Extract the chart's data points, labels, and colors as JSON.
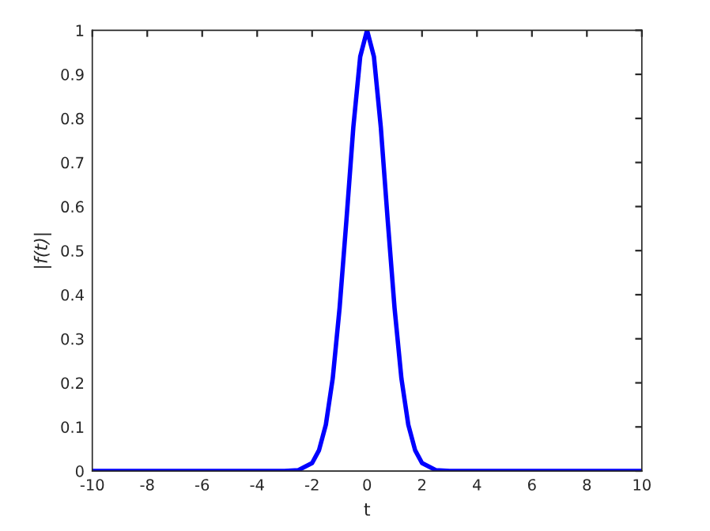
{
  "chart_data": {
    "type": "line",
    "xlabel": "t",
    "ylabel": "|f(t)|",
    "x": [
      -10,
      -3,
      -2.5,
      -2,
      -1.75,
      -1.5,
      -1.25,
      -1,
      -0.75,
      -0.5,
      -0.25,
      0,
      0.25,
      0.5,
      0.75,
      1,
      1.25,
      1.5,
      1.75,
      2,
      2.5,
      3,
      10
    ],
    "series": [
      {
        "color": "#0000ff",
        "values": [
          0,
          0,
          0.002,
          0.018,
          0.047,
          0.105,
          0.21,
          0.37,
          0.57,
          0.78,
          0.94,
          1,
          0.94,
          0.78,
          0.57,
          0.37,
          0.21,
          0.105,
          0.047,
          0.018,
          0.002,
          0,
          0
        ]
      }
    ],
    "xlim": [
      -10,
      10
    ],
    "ylim": [
      0,
      1
    ],
    "xticks": [
      -10,
      -8,
      -6,
      -4,
      -2,
      0,
      2,
      4,
      6,
      8,
      10
    ],
    "yticks": [
      0,
      0.1,
      0.2,
      0.3,
      0.4,
      0.5,
      0.6,
      0.7,
      0.8,
      0.9,
      1
    ],
    "grid": false,
    "marker": "none",
    "line_style": "solid"
  }
}
